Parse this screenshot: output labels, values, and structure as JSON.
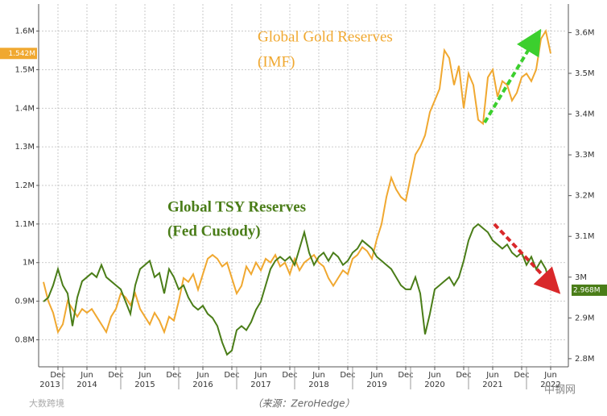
{
  "chart_data": {
    "type": "line",
    "x": [
      "2013-09",
      "2013-10",
      "2013-11",
      "2013-12",
      "2014-01",
      "2014-02",
      "2014-03",
      "2014-04",
      "2014-05",
      "2014-06",
      "2014-07",
      "2014-08",
      "2014-09",
      "2014-10",
      "2014-11",
      "2014-12",
      "2015-01",
      "2015-02",
      "2015-03",
      "2015-04",
      "2015-05",
      "2015-06",
      "2015-07",
      "2015-08",
      "2015-09",
      "2015-10",
      "2015-11",
      "2015-12",
      "2016-01",
      "2016-02",
      "2016-03",
      "2016-04",
      "2016-05",
      "2016-06",
      "2016-07",
      "2016-08",
      "2016-09",
      "2016-10",
      "2016-11",
      "2016-12",
      "2017-01",
      "2017-02",
      "2017-03",
      "2017-04",
      "2017-05",
      "2017-06",
      "2017-07",
      "2017-08",
      "2017-09",
      "2017-10",
      "2017-11",
      "2017-12",
      "2018-01",
      "2018-02",
      "2018-03",
      "2018-04",
      "2018-05",
      "2018-06",
      "2018-07",
      "2018-08",
      "2018-09",
      "2018-10",
      "2018-11",
      "2018-12",
      "2019-01",
      "2019-02",
      "2019-03",
      "2019-04",
      "2019-05",
      "2019-06",
      "2019-07",
      "2019-08",
      "2019-09",
      "2019-10",
      "2019-11",
      "2019-12",
      "2020-01",
      "2020-02",
      "2020-03",
      "2020-04",
      "2020-05",
      "2020-06",
      "2020-07",
      "2020-08",
      "2020-09",
      "2020-10",
      "2020-11",
      "2020-12",
      "2021-01",
      "2021-02",
      "2021-03",
      "2021-04",
      "2021-05",
      "2021-06",
      "2021-07",
      "2021-08",
      "2021-09",
      "2021-10",
      "2021-11",
      "2021-12",
      "2022-01",
      "2022-02",
      "2022-03",
      "2022-04",
      "2022-05",
      "2022-06"
    ],
    "xlim": [
      "2013-08",
      "2022-09"
    ],
    "xticks": [
      {
        "value": "2013-12",
        "label": "Dec"
      },
      {
        "value": "2014-06",
        "label": "Jun"
      },
      {
        "value": "2014-12",
        "label": "Dec"
      },
      {
        "value": "2015-06",
        "label": "Jun"
      },
      {
        "value": "2015-12",
        "label": "Dec"
      },
      {
        "value": "2016-06",
        "label": "Jun"
      },
      {
        "value": "2016-12",
        "label": "Dec"
      },
      {
        "value": "2017-06",
        "label": "Jun"
      },
      {
        "value": "2017-12",
        "label": "Dec"
      },
      {
        "value": "2018-06",
        "label": "Jun"
      },
      {
        "value": "2018-12",
        "label": "Dec"
      },
      {
        "value": "2019-06",
        "label": "Jun"
      },
      {
        "value": "2019-12",
        "label": "Dec"
      },
      {
        "value": "2020-06",
        "label": "Jun"
      },
      {
        "value": "2020-12",
        "label": "Dec"
      },
      {
        "value": "2021-06",
        "label": "Jun"
      },
      {
        "value": "2021-12",
        "label": "Dec"
      },
      {
        "value": "2022-06",
        "label": "Jun"
      }
    ],
    "xyears": [
      "2013",
      "2014",
      "2015",
      "2016",
      "2017",
      "2018",
      "2019",
      "2020",
      "2021",
      "2022"
    ],
    "ylim": [
      0.73,
      1.67
    ],
    "yticks": [
      {
        "value": 0.8,
        "label": "0.8M"
      },
      {
        "value": 0.9,
        "label": "0.9M"
      },
      {
        "value": 1,
        "label": "1M"
      },
      {
        "value": 1.1,
        "label": "1.1M"
      },
      {
        "value": 1.2,
        "label": "1.2M"
      },
      {
        "value": 1.3,
        "label": "1.3M"
      },
      {
        "value": 1.4,
        "label": "1.4M"
      },
      {
        "value": 1.5,
        "label": "1.5M"
      },
      {
        "value": 1.6,
        "label": "1.6M"
      }
    ],
    "y2lim": [
      2.78,
      3.67
    ],
    "y2ticks": [
      {
        "value": 2.8,
        "label": "2.8M"
      },
      {
        "value": 2.9,
        "label": "2.9M"
      },
      {
        "value": 3,
        "label": "3M"
      },
      {
        "value": 3.1,
        "label": "3.1M"
      },
      {
        "value": 3.2,
        "label": "3.2M"
      },
      {
        "value": 3.3,
        "label": "3.3M"
      },
      {
        "value": 3.4,
        "label": "3.4M"
      },
      {
        "value": 3.5,
        "label": "3.5M"
      },
      {
        "value": 3.6,
        "label": "3.6M"
      }
    ],
    "grid": true,
    "series": [
      {
        "name": "Global Gold Reserves",
        "subname": "(IMF)",
        "color": "#f0a830",
        "axis": "y",
        "values": [
          0.95,
          0.9,
          0.87,
          0.82,
          0.84,
          0.9,
          0.88,
          0.86,
          0.88,
          0.87,
          0.88,
          0.86,
          0.84,
          0.82,
          0.86,
          0.88,
          0.92,
          0.91,
          0.89,
          0.92,
          0.88,
          0.86,
          0.84,
          0.87,
          0.85,
          0.82,
          0.86,
          0.85,
          0.9,
          0.96,
          0.95,
          0.97,
          0.93,
          0.97,
          1.01,
          1.02,
          1.01,
          0.99,
          1.0,
          0.96,
          0.92,
          0.94,
          0.99,
          0.97,
          1.0,
          0.98,
          1.01,
          1.0,
          1.02,
          0.99,
          1.0,
          0.97,
          1.01,
          0.98,
          1.0,
          1.01,
          1.02,
          1.0,
          0.99,
          0.96,
          0.94,
          0.96,
          0.98,
          0.97,
          1.01,
          1.02,
          1.04,
          1.03,
          1.01,
          1.06,
          1.1,
          1.17,
          1.22,
          1.19,
          1.17,
          1.16,
          1.22,
          1.28,
          1.3,
          1.33,
          1.39,
          1.42,
          1.45,
          1.55,
          1.53,
          1.46,
          1.51,
          1.4,
          1.49,
          1.46,
          1.37,
          1.36,
          1.48,
          1.5,
          1.43,
          1.47,
          1.46,
          1.42,
          1.44,
          1.48,
          1.49,
          1.47,
          1.5,
          1.58,
          1.6,
          1.542
        ],
        "value_labels": [
          null,
          null,
          null,
          null,
          null,
          null,
          null,
          null,
          null,
          null,
          null,
          null,
          null,
          null,
          null,
          null,
          null,
          null,
          null,
          null,
          null,
          null,
          null,
          null,
          null,
          null,
          null,
          null,
          null,
          null,
          null,
          null,
          null,
          null,
          null,
          null,
          null,
          null,
          null,
          null,
          null,
          null,
          null,
          null,
          null,
          null,
          null,
          null,
          null,
          null,
          null,
          null,
          null,
          null,
          null,
          null,
          null,
          null,
          null,
          null,
          null,
          null,
          null,
          null,
          null,
          null,
          null,
          null,
          null,
          null,
          null,
          null,
          null,
          null,
          null,
          null,
          null,
          null,
          null,
          null,
          null,
          null,
          null,
          null,
          null,
          null,
          null,
          null,
          null,
          null,
          null,
          null,
          null,
          null,
          null,
          null,
          null,
          null,
          null,
          null,
          null,
          null,
          null,
          null,
          null,
          "1.542M"
        ]
      },
      {
        "name": "Global TSY Reserves",
        "subname": "(Fed Custody)",
        "color": "#4a7d18",
        "axis": "y2",
        "values": [
          2.94,
          2.95,
          2.98,
          3.02,
          2.98,
          2.96,
          2.88,
          2.95,
          2.99,
          3.0,
          3.01,
          3.0,
          3.03,
          3.0,
          2.99,
          2.98,
          2.97,
          2.94,
          2.91,
          2.98,
          3.02,
          3.03,
          3.04,
          3.0,
          3.01,
          2.96,
          3.02,
          3.0,
          2.97,
          2.98,
          2.95,
          2.93,
          2.92,
          2.93,
          2.91,
          2.9,
          2.88,
          2.84,
          2.81,
          2.82,
          2.87,
          2.88,
          2.87,
          2.89,
          2.92,
          2.94,
          2.98,
          3.02,
          3.04,
          3.05,
          3.04,
          3.05,
          3.03,
          3.07,
          3.11,
          3.06,
          3.03,
          3.05,
          3.06,
          3.04,
          3.06,
          3.05,
          3.03,
          3.04,
          3.06,
          3.07,
          3.09,
          3.08,
          3.07,
          3.05,
          3.04,
          3.03,
          3.02,
          3.0,
          2.98,
          2.97,
          2.97,
          3.0,
          2.96,
          2.86,
          2.91,
          2.97,
          2.98,
          2.99,
          3.0,
          2.98,
          3.0,
          3.04,
          3.09,
          3.12,
          3.13,
          3.12,
          3.11,
          3.09,
          3.08,
          3.07,
          3.08,
          3.06,
          3.05,
          3.06,
          3.03,
          3.05,
          3.02,
          3.04,
          3.02,
          2.968
        ],
        "value_labels": [
          null,
          null,
          null,
          null,
          null,
          null,
          null,
          null,
          null,
          null,
          null,
          null,
          null,
          null,
          null,
          null,
          null,
          null,
          null,
          null,
          null,
          null,
          null,
          null,
          null,
          null,
          null,
          null,
          null,
          null,
          null,
          null,
          null,
          null,
          null,
          null,
          null,
          null,
          null,
          null,
          null,
          null,
          null,
          null,
          null,
          null,
          null,
          null,
          null,
          null,
          null,
          null,
          null,
          null,
          null,
          null,
          null,
          null,
          null,
          null,
          null,
          null,
          null,
          null,
          null,
          null,
          null,
          null,
          null,
          null,
          null,
          null,
          null,
          null,
          null,
          null,
          null,
          null,
          null,
          null,
          null,
          null,
          null,
          null,
          null,
          null,
          null,
          null,
          null,
          null,
          null,
          null,
          null,
          null,
          null,
          null,
          null,
          null,
          null,
          null,
          null,
          null,
          null,
          null,
          null,
          "2.968M"
        ]
      }
    ],
    "source": "（来源：ZeroHedge）",
    "watermarks": [
      "大数跨境",
      "中钢网"
    ]
  }
}
